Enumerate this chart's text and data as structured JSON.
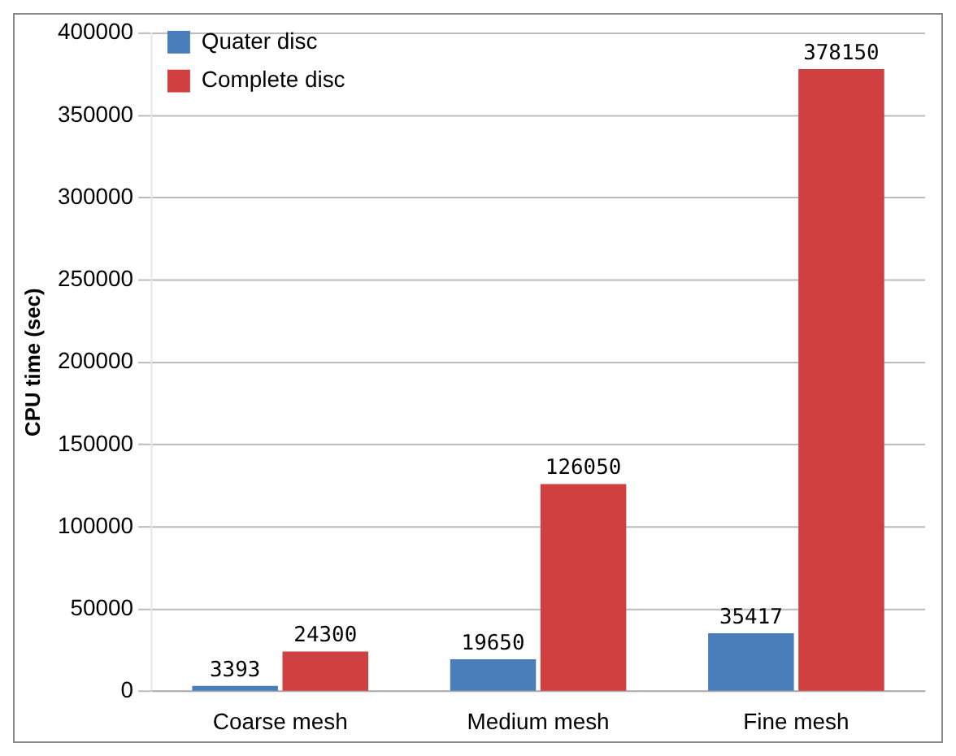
{
  "chart_data": {
    "type": "bar",
    "ylabel": "CPU time (sec)",
    "categories": [
      "Coarse mesh",
      "Medium mesh",
      "Fine mesh"
    ],
    "series": [
      {
        "name": "Quater disc",
        "color": "#4a7ebb",
        "values": [
          3393,
          19650,
          35417
        ]
      },
      {
        "name": "Complete disc",
        "color": "#d04040",
        "values": [
          24300,
          126050,
          378150
        ]
      }
    ],
    "ylim": [
      0,
      400000
    ],
    "yticks": [
      0,
      50000,
      100000,
      150000,
      200000,
      250000,
      300000,
      350000,
      400000
    ],
    "grid": "y",
    "legend": "top left",
    "data_labels": true
  }
}
